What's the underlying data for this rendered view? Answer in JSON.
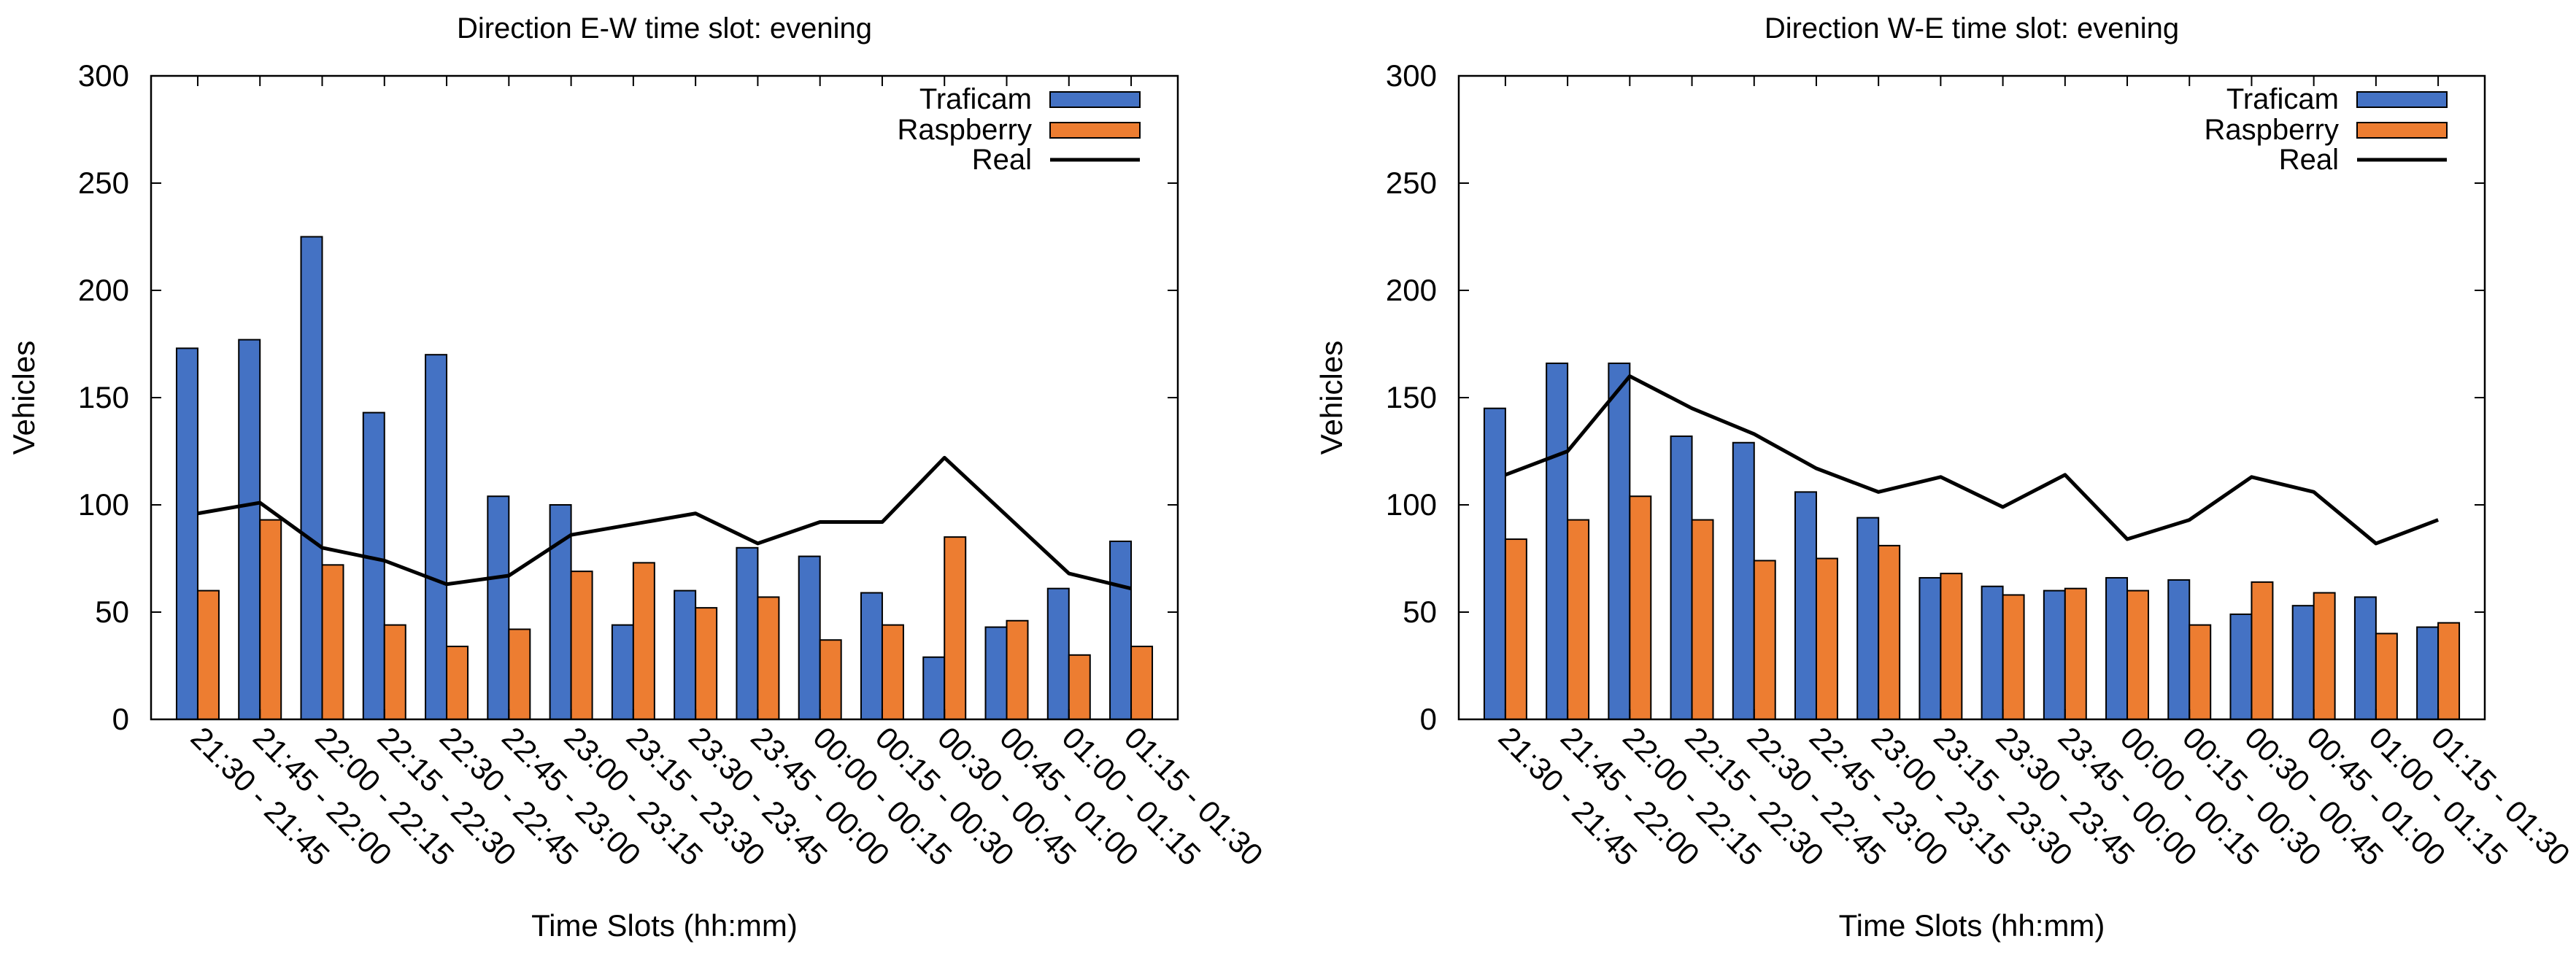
{
  "colors": {
    "traficam": "#4472c4",
    "raspberry": "#ed7d31",
    "real": "#000000",
    "axis": "#000000"
  },
  "chart_data": [
    {
      "type": "bar",
      "title": "Direction E-W time slot: evening",
      "xlabel": "Time Slots (hh:mm)",
      "ylabel": "Vehicles",
      "ylim": [
        0,
        300
      ],
      "yticks": [
        "0",
        "50",
        "100",
        "150",
        "200",
        "250",
        "300"
      ],
      "legend_position": "top-right",
      "categories": [
        "21:30 - 21:45",
        "21:45 - 22:00",
        "22:00 - 22:15",
        "22:15 - 22:30",
        "22:30 - 22:45",
        "22:45 - 23:00",
        "23:00 - 23:15",
        "23:15 - 23:30",
        "23:30 - 23:45",
        "23:45 - 00:00",
        "00:00 - 00:15",
        "00:15 - 00:30",
        "00:30 - 00:45",
        "00:45 - 01:00",
        "01:00 - 01:15",
        "01:15 - 01:30"
      ],
      "series": [
        {
          "name": "Traficam",
          "kind": "bar",
          "values": [
            173,
            177,
            225,
            143,
            170,
            104,
            100,
            44,
            60,
            80,
            76,
            59,
            29,
            43,
            61,
            83
          ]
        },
        {
          "name": "Raspberry",
          "kind": "bar",
          "values": [
            60,
            93,
            72,
            44,
            34,
            42,
            69,
            73,
            52,
            57,
            37,
            44,
            85,
            46,
            30,
            34
          ]
        },
        {
          "name": "Real",
          "kind": "line",
          "values": [
            96,
            101,
            80,
            74,
            63,
            67,
            86,
            91,
            96,
            82,
            92,
            92,
            122,
            95,
            68,
            61
          ]
        }
      ]
    },
    {
      "type": "bar",
      "title": "Direction W-E time slot: evening",
      "xlabel": "Time Slots (hh:mm)",
      "ylabel": "Vehicles",
      "ylim": [
        0,
        300
      ],
      "yticks": [
        "0",
        "50",
        "100",
        "150",
        "200",
        "250",
        "300"
      ],
      "legend_position": "top-right",
      "categories": [
        "21:30 - 21:45",
        "21:45 - 22:00",
        "22:00 - 22:15",
        "22:15 - 22:30",
        "22:30 - 22:45",
        "22:45 - 23:00",
        "23:00 - 23:15",
        "23:15 - 23:30",
        "23:30 - 23:45",
        "23:45 - 00:00",
        "00:00 - 00:15",
        "00:15 - 00:30",
        "00:30 - 00:45",
        "00:45 - 01:00",
        "01:00 - 01:15",
        "01:15 - 01:30"
      ],
      "series": [
        {
          "name": "Traficam",
          "kind": "bar",
          "values": [
            145,
            166,
            166,
            132,
            129,
            106,
            94,
            66,
            62,
            60,
            66,
            65,
            49,
            53,
            57,
            43
          ]
        },
        {
          "name": "Raspberry",
          "kind": "bar",
          "values": [
            84,
            93,
            104,
            93,
            74,
            75,
            81,
            68,
            58,
            61,
            60,
            44,
            64,
            59,
            40,
            45
          ]
        },
        {
          "name": "Real",
          "kind": "line",
          "values": [
            114,
            125,
            160,
            145,
            133,
            117,
            106,
            113,
            99,
            114,
            84,
            93,
            113,
            106,
            82,
            93
          ]
        }
      ]
    }
  ]
}
